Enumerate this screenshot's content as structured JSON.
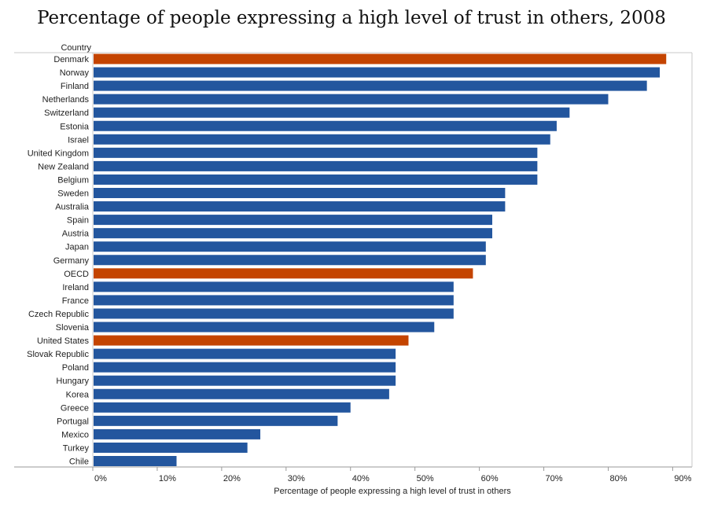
{
  "chart_data": {
    "type": "bar",
    "orientation": "horizontal",
    "title": "Percentage of people expressing a high level of trust in others, 2008",
    "xlabel": "Percentage of people expressing a high level of trust in others",
    "ylabel": "Country",
    "xlim": [
      0,
      93
    ],
    "x_ticks": [
      "0%",
      "10%",
      "20%",
      "30%",
      "40%",
      "50%",
      "60%",
      "70%",
      "80%",
      "90%"
    ],
    "x_tick_values": [
      0,
      10,
      20,
      30,
      40,
      50,
      60,
      70,
      80,
      90
    ],
    "grid": false,
    "colors": {
      "default": "#23569e",
      "highlight": "#c44400"
    },
    "categories": [
      "Denmark",
      "Norway",
      "Finland",
      "Netherlands",
      "Switzerland",
      "Estonia",
      "Israel",
      "United Kingdom",
      "New Zealand",
      "Belgium",
      "Sweden",
      "Australia",
      "Spain",
      "Austria",
      "Japan",
      "Germany",
      "OECD",
      "Ireland",
      "France",
      "Czech Republic",
      "Slovenia",
      "United States",
      "Slovak Republic",
      "Poland",
      "Hungary",
      "Korea",
      "Greece",
      "Portugal",
      "Mexico",
      "Turkey",
      "Chile"
    ],
    "values": [
      89,
      88,
      86,
      80,
      74,
      72,
      71,
      69,
      69,
      69,
      64,
      64,
      62,
      62,
      61,
      61,
      59,
      56,
      56,
      56,
      53,
      49,
      47,
      47,
      47,
      46,
      40,
      38,
      26,
      24,
      13
    ],
    "highlighted": [
      "Denmark",
      "OECD",
      "United States"
    ]
  }
}
